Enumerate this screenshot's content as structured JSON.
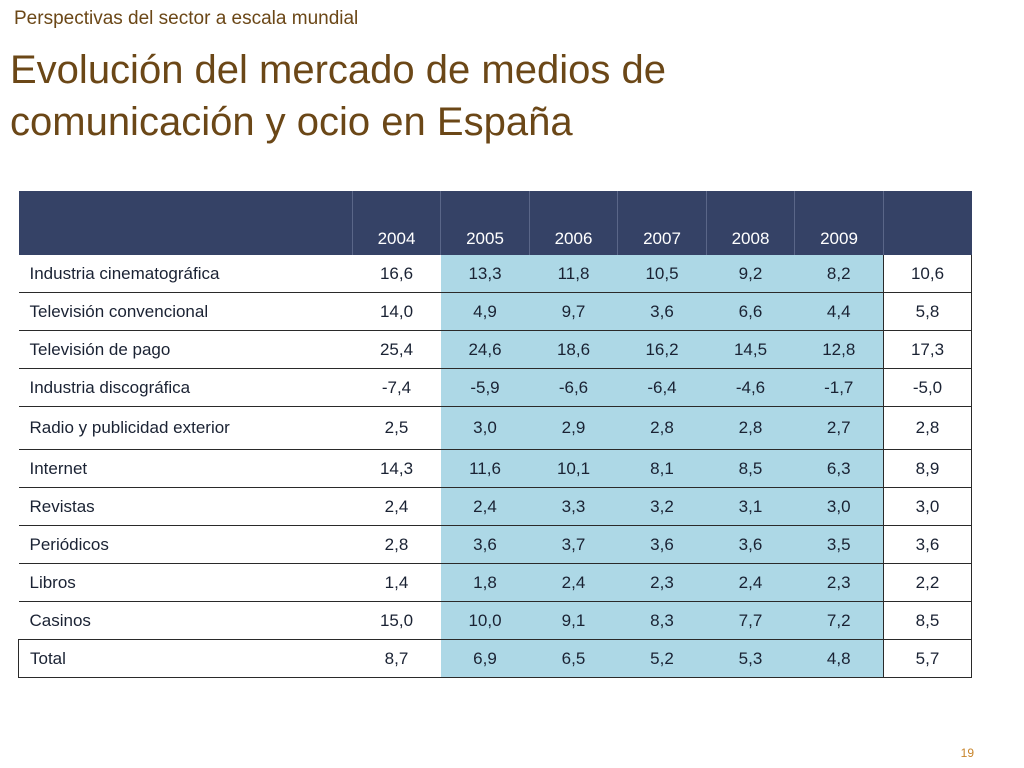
{
  "header": {
    "section": "Perspectivas del sector a escala mundial",
    "title_line1": "Evolución del mercado de medios de",
    "title_line2": "comunicación y ocio en España"
  },
  "table": {
    "columns": [
      "",
      "2004",
      "2005",
      "2006",
      "2007",
      "2008",
      "2009",
      ""
    ],
    "rows": [
      {
        "label": "Industria cinematográfica",
        "values": [
          "16,6",
          "13,3",
          "11,8",
          "10,5",
          "9,2",
          "8,2",
          "10,6"
        ]
      },
      {
        "label": "Televisión convencional",
        "values": [
          "14,0",
          "4,9",
          "9,7",
          "3,6",
          "6,6",
          "4,4",
          "5,8"
        ]
      },
      {
        "label": "Televisión de pago",
        "values": [
          "25,4",
          "24,6",
          "18,6",
          "16,2",
          "14,5",
          "12,8",
          "17,3"
        ]
      },
      {
        "label": "Industria discográfica",
        "values": [
          "-7,4",
          "-5,9",
          "-6,6",
          "-6,4",
          "-4,6",
          "-1,7",
          "-5,0"
        ]
      },
      {
        "label": "Radio y publicidad exterior",
        "values": [
          "2,5",
          "3,0",
          "2,9",
          "2,8",
          "2,8",
          "2,7",
          "2,8"
        ]
      },
      {
        "label": "Internet",
        "values": [
          "14,3",
          "11,6",
          "10,1",
          "8,1",
          "8,5",
          "6,3",
          "8,9"
        ]
      },
      {
        "label": "Revistas",
        "values": [
          "2,4",
          "2,4",
          "3,3",
          "3,2",
          "3,1",
          "3,0",
          "3,0"
        ]
      },
      {
        "label": "Periódicos",
        "values": [
          "2,8",
          "3,6",
          "3,7",
          "3,6",
          "3,6",
          "3,5",
          "3,6"
        ]
      },
      {
        "label": "Libros",
        "values": [
          "1,4",
          "1,8",
          "2,4",
          "2,3",
          "2,4",
          "2,3",
          "2,2"
        ]
      },
      {
        "label": "Casinos",
        "values": [
          "15,0",
          "10,0",
          "9,1",
          "8,3",
          "7,7",
          "7,2",
          "8,5"
        ]
      },
      {
        "label": "Total",
        "values": [
          "8,7",
          "6,9",
          "6,5",
          "5,2",
          "5,3",
          "4,8",
          "5,7"
        ]
      }
    ]
  },
  "footer": {
    "page_number": "19"
  },
  "colors": {
    "title_brown": "#6b4717",
    "header_navy": "#354266",
    "shaded_cells": "#add8e6",
    "page_number_orange": "#c8842a"
  }
}
